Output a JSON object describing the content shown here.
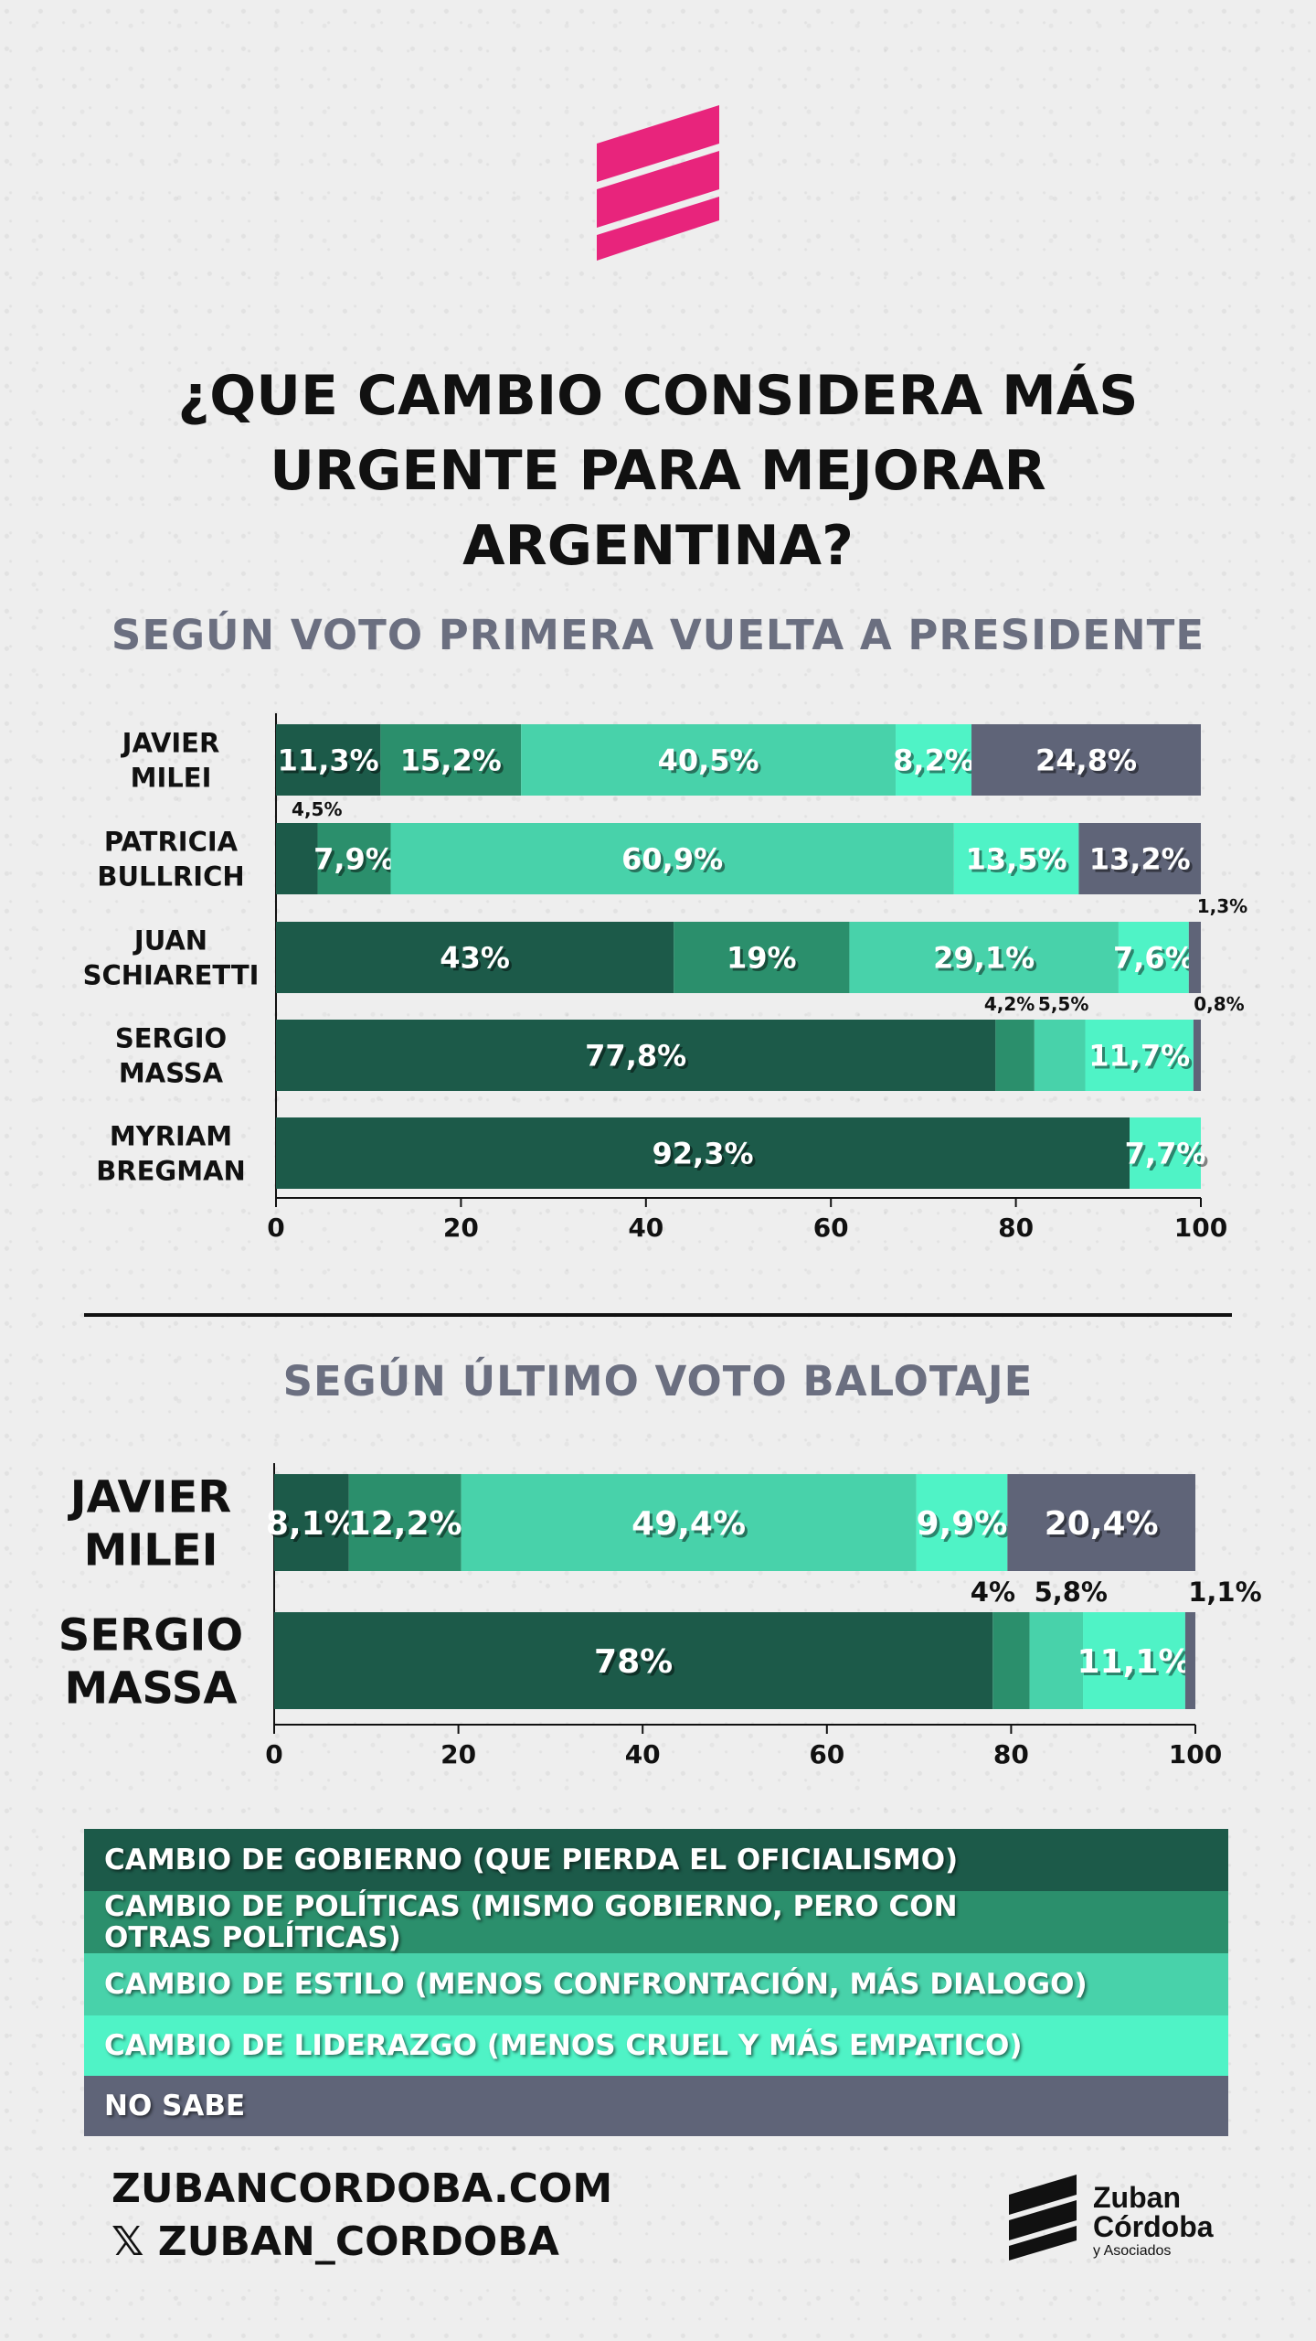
{
  "title": "¿QUE CAMBIO CONSIDERA MÁS URGENTE PARA MEJORAR ARGENTINA?",
  "colors": {
    "gobierno": "#1c5a49",
    "politicas": "#2b8f6c",
    "estilo": "#48d2aa",
    "liderazgo": "#4ff3c6",
    "nosabe": "#5f6478"
  },
  "legend": [
    {
      "key": "gobierno",
      "label": "CAMBIO DE GOBIERNO (QUE PIERDA EL OFICIALISMO)"
    },
    {
      "key": "politicas",
      "label": "CAMBIO DE POLÍTICAS (MISMO GOBIERNO, PERO CON OTRAS POLÍTICAS)"
    },
    {
      "key": "estilo",
      "label": "CAMBIO DE ESTILO (MENOS CONFRONTACIÓN, MÁS DIALOGO)"
    },
    {
      "key": "liderazgo",
      "label": "CAMBIO DE LIDERAZGO (MENOS CRUEL Y MÁS EMPATICO)"
    },
    {
      "key": "nosabe",
      "label": "NO SABE"
    }
  ],
  "chart_data": [
    {
      "type": "bar",
      "orientation": "horizontal",
      "stacked": true,
      "title": "SEGÚN VOTO PRIMERA VUELTA A PRESIDENTE",
      "xlim": [
        0,
        100
      ],
      "xticks": [
        "0",
        "20",
        "40",
        "60",
        "80",
        "100"
      ],
      "categories": [
        [
          "JAVIER",
          "MILEI"
        ],
        [
          "PATRICIA",
          "BULLRICH"
        ],
        [
          "JUAN",
          "SCHIARETTI"
        ],
        [
          "SERGIO",
          "MASSA"
        ],
        [
          "MYRIAM",
          "BREGMAN"
        ]
      ],
      "series": [
        {
          "key": "gobierno",
          "values": [
            11.3,
            4.5,
            43,
            77.8,
            92.3
          ],
          "labels": [
            "11,3%",
            "4,5%",
            "43%",
            "77,8%",
            "92,3%"
          ]
        },
        {
          "key": "politicas",
          "values": [
            15.2,
            7.9,
            19,
            4.2,
            0
          ],
          "labels": [
            "15,2%",
            "7,9%",
            "19%",
            "4,2%",
            ""
          ]
        },
        {
          "key": "estilo",
          "values": [
            40.5,
            60.9,
            29.1,
            5.5,
            0
          ],
          "labels": [
            "40,5%",
            "60,9%",
            "29,1%",
            "5,5%",
            ""
          ]
        },
        {
          "key": "liderazgo",
          "values": [
            8.2,
            13.5,
            7.6,
            11.7,
            7.7
          ],
          "labels": [
            "8,2%",
            "13,5%",
            "7,6%",
            "11,7%",
            "7,7%"
          ]
        },
        {
          "key": "nosabe",
          "values": [
            24.8,
            13.2,
            1.3,
            0.8,
            0
          ],
          "labels": [
            "24,8%",
            "13,2%",
            "1,3%",
            "0,8%",
            ""
          ]
        }
      ]
    },
    {
      "type": "bar",
      "orientation": "horizontal",
      "stacked": true,
      "title": "SEGÚN ÚLTIMO VOTO BALOTAJE",
      "xlim": [
        0,
        100
      ],
      "xticks": [
        "0",
        "20",
        "40",
        "60",
        "80",
        "100"
      ],
      "categories": [
        [
          "JAVIER",
          "MILEI"
        ],
        [
          "SERGIO",
          "MASSA"
        ]
      ],
      "series": [
        {
          "key": "gobierno",
          "values": [
            8.1,
            78
          ],
          "labels": [
            "8,1%",
            "78%"
          ]
        },
        {
          "key": "politicas",
          "values": [
            12.2,
            4
          ],
          "labels": [
            "12,2%",
            "4%"
          ]
        },
        {
          "key": "estilo",
          "values": [
            49.4,
            5.8
          ],
          "labels": [
            "49,4%",
            "5,8%"
          ]
        },
        {
          "key": "liderazgo",
          "values": [
            9.9,
            11.1
          ],
          "labels": [
            "9,9%",
            "11,1%"
          ]
        },
        {
          "key": "nosabe",
          "values": [
            20.4,
            1.1
          ],
          "labels": [
            "20,4%",
            "1,1%"
          ]
        }
      ]
    }
  ],
  "footer": {
    "website": "ZUBANCORDOBA.COM",
    "social": "𝕏 ZUBAN_CORDOBA",
    "brand_name": "Zuban",
    "brand_name2": "Córdoba",
    "brand_sub": "y Asociados"
  }
}
